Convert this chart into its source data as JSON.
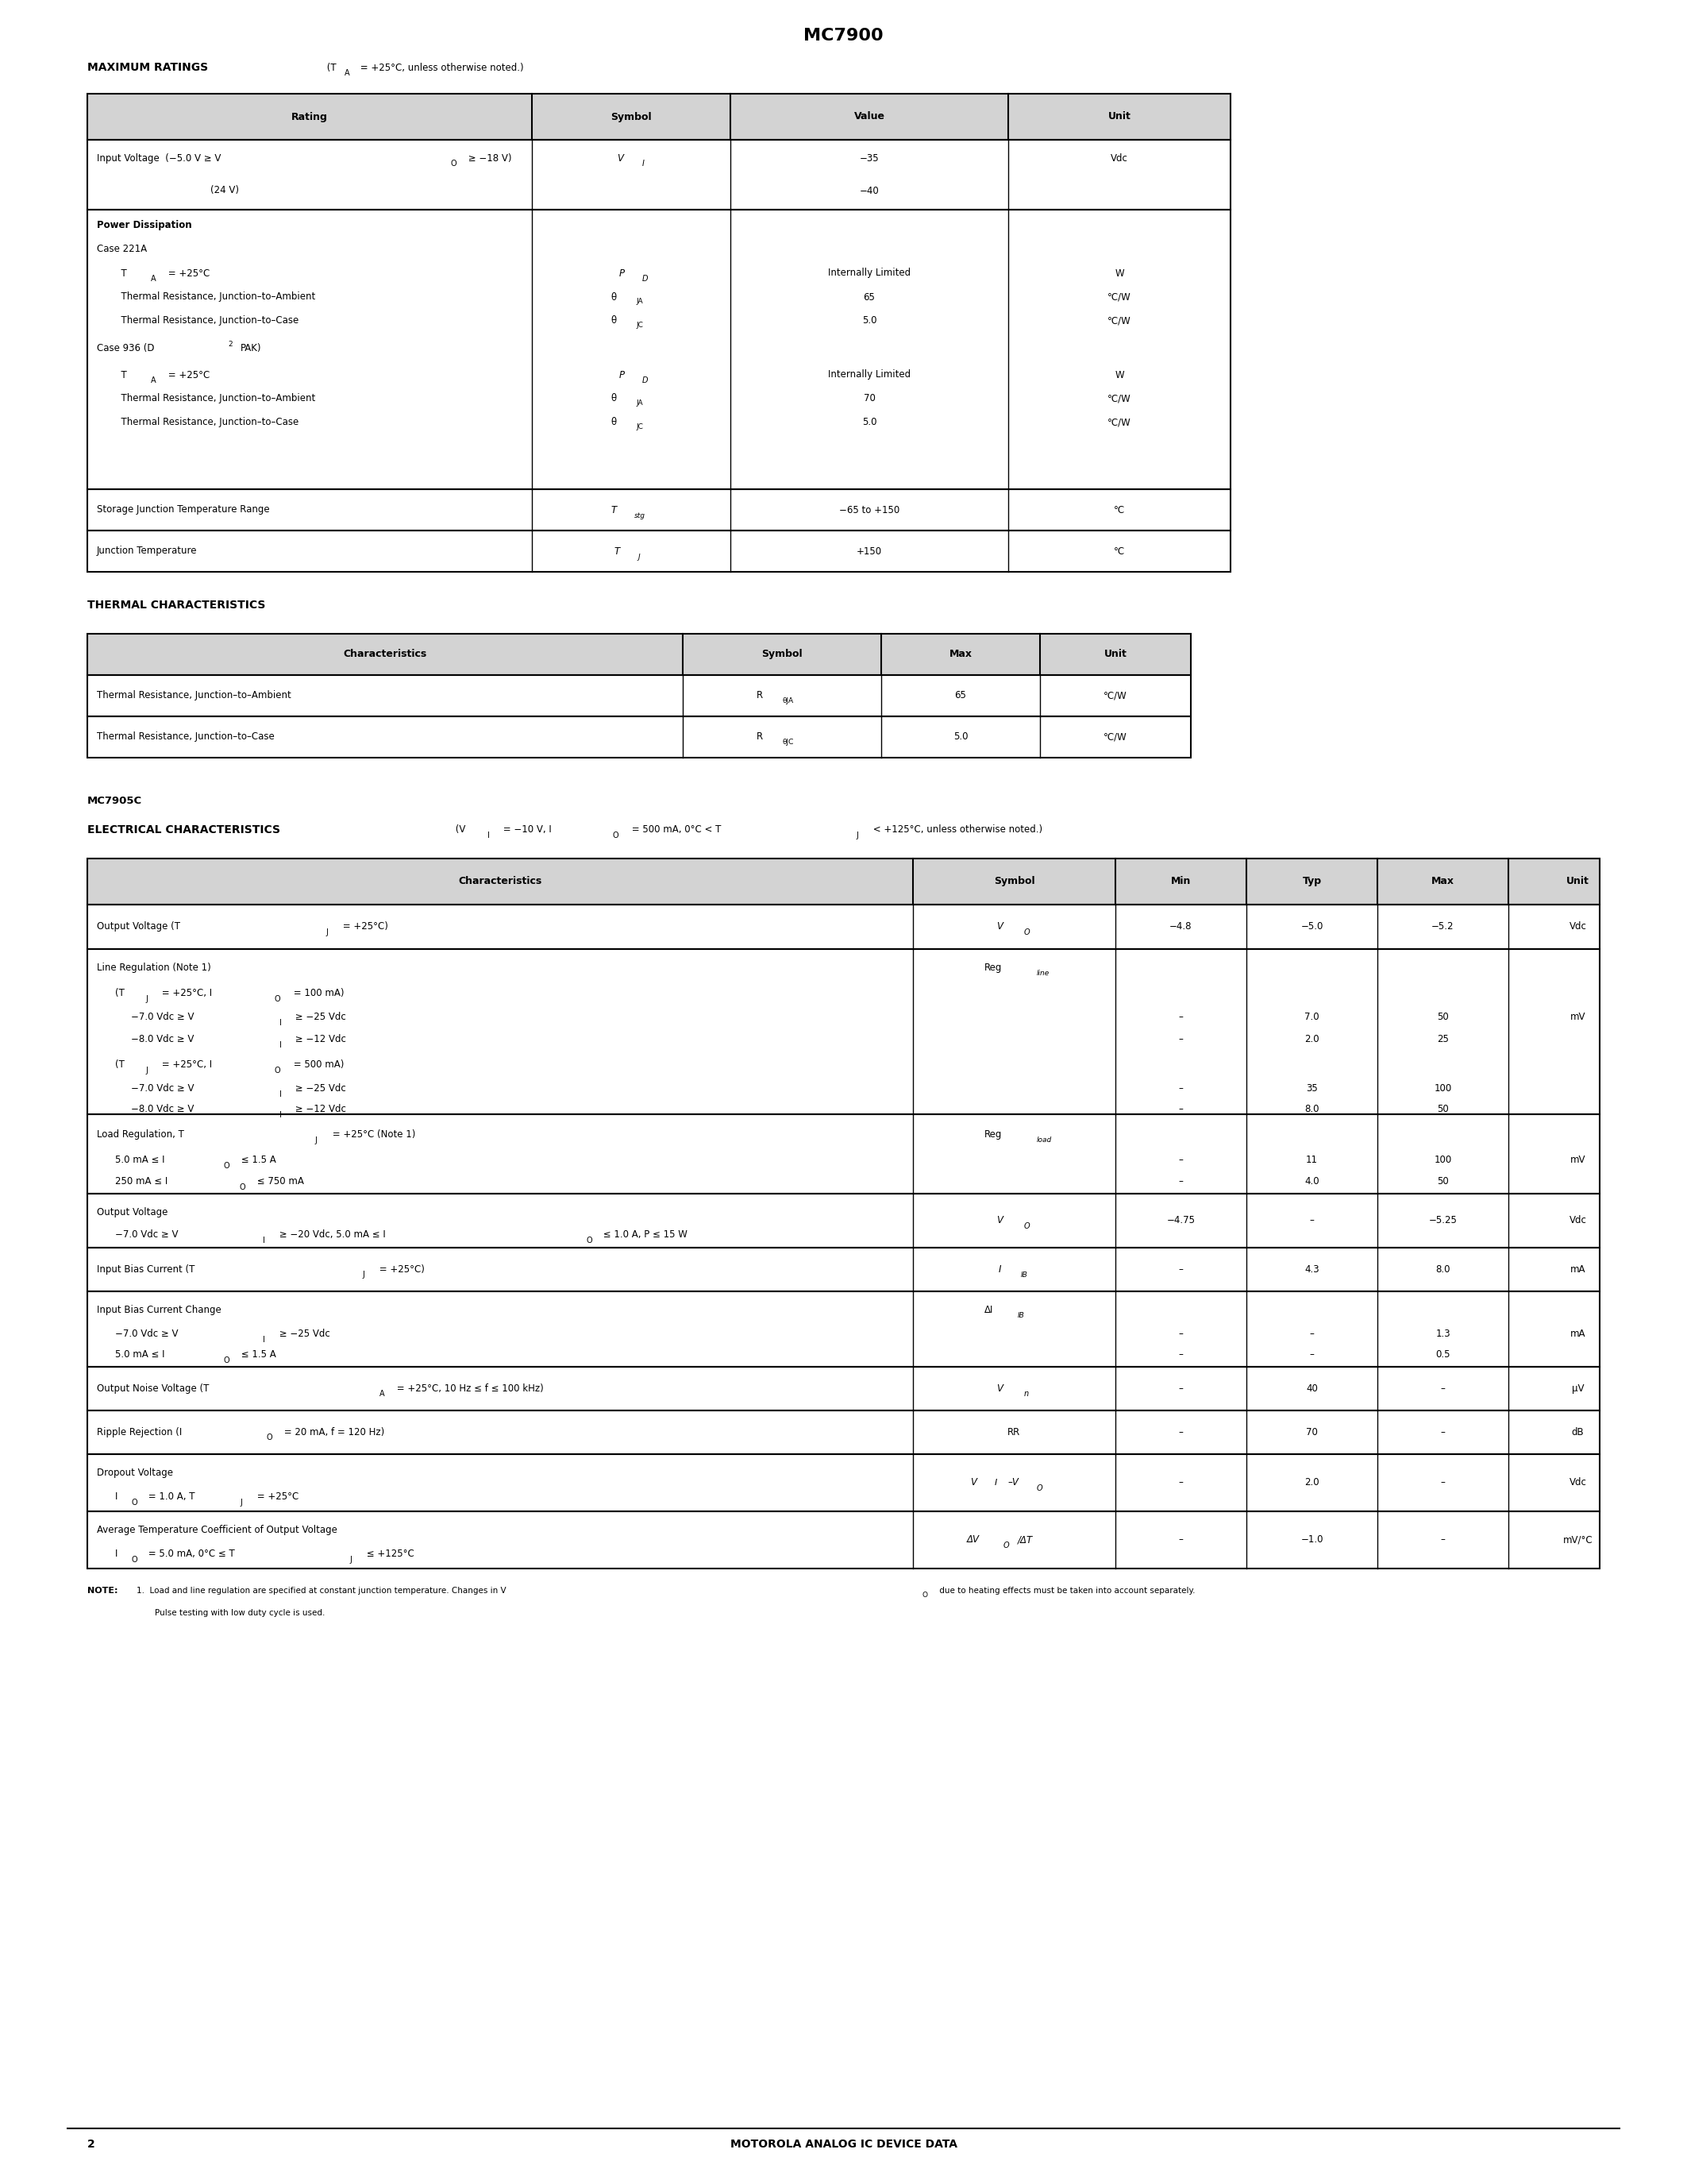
{
  "title": "MC7900",
  "page_number": "2",
  "footer_text": "MOTOROLA ANALOG IC DEVICE DATA",
  "bg_color": "#ffffff",
  "text_color": "#000000",
  "header_bg": "#d3d3d3"
}
